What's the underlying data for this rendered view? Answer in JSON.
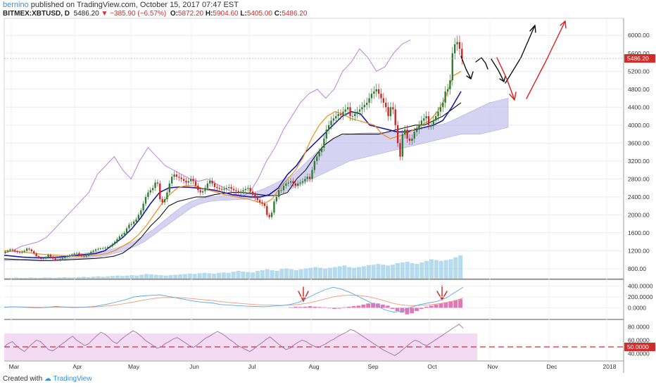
{
  "header": {
    "author": "bernino",
    "published": "published on TradingView.com, October 15, 2017 07:47 EST",
    "symbol": "BITMEX:XBTUSD, D",
    "last": "5486.20",
    "change": "−385.90 (−6.57%)",
    "o_label": "O:",
    "o": "5872.20",
    "h_label": "H:",
    "h": "5904.60",
    "l_label": "L:",
    "l": "5405.00",
    "c_label": "C:",
    "c": "5486.20"
  },
  "footer": {
    "created_with": "Created with",
    "brand": "TradingView"
  },
  "colors": {
    "up": "#2e7d32",
    "down": "#c62828",
    "ema_fast": "#f28c1a",
    "kijun": "#1a1aa8",
    "baseline": "#111111",
    "chikou": "#b873e0",
    "cloud_bull": "#c8c4ee",
    "cloud_bear": "#f6cfd8",
    "volume": "#9ccfe8",
    "rsi_band": "#f3dcf3",
    "rsi_line": "#9c6fa3",
    "macd_hist": "#e277b8",
    "macd_line": "#5aa7e8",
    "signal_line": "#f29a7a",
    "forecast_black": "#111111",
    "forecast_red": "#e11d1d",
    "price_tag": "#d42b2b"
  },
  "chart_data": [
    {
      "type": "candlestick",
      "title": "",
      "price_axis": {
        "ticks": [
          "6000.00",
          "5600.00",
          "5200.00",
          "4800.00",
          "4400.00",
          "4000.00",
          "3600.00",
          "3200.00",
          "2800.00",
          "2400.00",
          "2000.00",
          "1600.00",
          "1200.00",
          "800.00"
        ],
        "ylim": [
          580,
          6380
        ]
      },
      "time_axis": {
        "labels": [
          "Mar",
          "Apr",
          "May",
          "Jun",
          "Jul",
          "Aug",
          "Sep",
          "Oct",
          "Nov",
          "Dec",
          "2018"
        ]
      },
      "last_price_label": "5486.20",
      "closes": [
        1180,
        1205,
        1230,
        1215,
        1190,
        1170,
        1160,
        1180,
        1200,
        1250,
        1230,
        1190,
        1140,
        1080,
        1045,
        1020,
        1030,
        1060,
        1110,
        1070,
        1030,
        1000,
        990,
        1015,
        1040,
        1065,
        1080,
        1100,
        1120,
        1140,
        1150,
        1110,
        1090,
        1075,
        1095,
        1130,
        1180,
        1200,
        1230,
        1245,
        1250,
        1260,
        1270,
        1285,
        1300,
        1350,
        1400,
        1460,
        1520,
        1560,
        1600,
        1700,
        1780,
        1800,
        1850,
        1900,
        2000,
        2100,
        2250,
        2400,
        2500,
        2550,
        2600,
        2720,
        2700,
        2350,
        2280,
        2350,
        2500,
        2700,
        2850,
        2900,
        2850,
        2830,
        2800,
        2760,
        2720,
        2750,
        2800,
        2750,
        2650,
        2550,
        2500,
        2530,
        2600,
        2700,
        2760,
        2700,
        2620,
        2600,
        2580,
        2560,
        2580,
        2600,
        2620,
        2580,
        2550,
        2530,
        2500,
        2520,
        2550,
        2580,
        2600,
        2520,
        2450,
        2380,
        2330,
        2280,
        2250,
        2200,
        2000,
        1950,
        2050,
        2300,
        2400,
        2550,
        2550,
        2650,
        2700,
        2720,
        2750,
        2700,
        2650,
        2700,
        2720,
        2750,
        2800,
        2850,
        2800,
        3000,
        3200,
        3300,
        3400,
        3500,
        3700,
        3900,
        4000,
        4100,
        4150,
        4200,
        4250,
        4220,
        4300,
        4350,
        4400,
        4200,
        4200,
        4250,
        4300,
        4350,
        4400,
        4450,
        4500,
        4600,
        4700,
        4750,
        4800,
        4700,
        4600,
        4500,
        4400,
        4200,
        4400,
        4350,
        4000,
        3600,
        3300,
        3800,
        3900,
        3700,
        3650,
        3700,
        3850,
        3900,
        4000,
        4100,
        4150,
        4200,
        4000,
        4000,
        4100,
        4200,
        4300,
        4400,
        4500,
        4750,
        4800,
        5000,
        5600,
        5800,
        5850,
        5700,
        5486
      ],
      "ema": [
        1200,
        1190,
        1180,
        1160,
        1140,
        1120,
        1110,
        1100,
        1090,
        1080,
        1080,
        1090,
        1110,
        1140,
        1200,
        1300,
        1400,
        1550,
        1750,
        2000,
        2250,
        2450,
        2600,
        2650,
        2650,
        2600,
        2550,
        2500,
        2450,
        2420,
        2380,
        2350,
        2300,
        2250,
        2350,
        2600,
        2800,
        3000,
        3300,
        3700,
        4000,
        4200,
        4300,
        4250,
        4150,
        4100,
        4050,
        4000,
        3800,
        3700,
        3750,
        3800,
        3900,
        4000,
        4100,
        4300,
        4600,
        5100,
        5200
      ],
      "kijun": [
        1100,
        1080,
        1060,
        1050,
        1050,
        1050,
        1060,
        1080,
        1100,
        1120,
        1140,
        1200,
        1350,
        1500,
        1700,
        1950,
        2250,
        2500,
        2600,
        2620,
        2620,
        2600,
        2580,
        2550,
        2500,
        2450,
        2420,
        2400,
        2400,
        2450,
        2600,
        2900,
        3100,
        3400,
        3600,
        3800,
        4000,
        4200,
        4300,
        4250,
        4000,
        3950,
        3900,
        3850,
        3850,
        3900,
        3950,
        4000,
        4100,
        4400,
        4750
      ],
      "baseline": [
        1020,
        1010,
        1000,
        990,
        980,
        980,
        990,
        1000,
        1010,
        1020,
        1030,
        1050,
        1080,
        1150,
        1300,
        1500,
        1750,
        1950,
        2200,
        2300,
        2350,
        2400,
        2400,
        2450,
        2480,
        2500,
        2500,
        2480,
        2450,
        2430,
        2430,
        2500,
        2800,
        3000,
        3300,
        3550,
        3700,
        3800,
        3800,
        3800,
        3800,
        3800,
        3850,
        3900,
        3950,
        4000,
        4000,
        4100,
        4200,
        4350,
        4500
      ],
      "chikou": [
        1150,
        1200,
        1300,
        1350,
        1400,
        1500,
        1700,
        1900,
        2100,
        2300,
        2500,
        2900,
        3100,
        3300,
        3000,
        2800,
        3200,
        3500,
        3300,
        3100,
        3000,
        2900,
        2800,
        2750,
        2800,
        2700,
        2600,
        2500,
        2400,
        2500,
        2800,
        3200,
        3500,
        3900,
        4200,
        4500,
        4700,
        4800,
        4600,
        4800,
        5200,
        5400,
        5700,
        5500,
        5200,
        5300,
        5600,
        5800,
        5900
      ],
      "cloud_upper": [
        1000,
        1000,
        1010,
        1020,
        1040,
        1060,
        1080,
        1100,
        1130,
        1160,
        1180,
        1210,
        1260,
        1330,
        1420,
        1540,
        1680,
        1850,
        2020,
        2180,
        2300,
        2370,
        2400,
        2420,
        2440,
        2460,
        2480,
        2520,
        2600,
        2700,
        2800,
        2900,
        3100,
        3300,
        3500,
        3650,
        3750,
        3800,
        3820,
        3830,
        3830,
        3840,
        3850,
        3880,
        3900,
        3940,
        3980,
        4020,
        4100,
        4200,
        4300,
        4400,
        4500,
        4550,
        4600
      ],
      "cloud_lower": [
        980,
        985,
        990,
        995,
        1000,
        1005,
        1010,
        1020,
        1030,
        1040,
        1060,
        1100,
        1150,
        1200,
        1300,
        1400,
        1550,
        1700,
        1850,
        2000,
        2150,
        2250,
        2300,
        2320,
        2330,
        2340,
        2350,
        2380,
        2400,
        2450,
        2500,
        2600,
        2700,
        2800,
        2900,
        3000,
        3100,
        3200,
        3250,
        3300,
        3350,
        3400,
        3450,
        3500,
        3550,
        3600,
        3650,
        3700,
        3750,
        3800,
        3800,
        3800,
        3850,
        3900,
        3950
      ],
      "volume": [
        2,
        2,
        3,
        2,
        2,
        3,
        2,
        2,
        3,
        3,
        2,
        3,
        4,
        3,
        3,
        4,
        5,
        4,
        5,
        6,
        5,
        6,
        7,
        8,
        7,
        8,
        9,
        8,
        10,
        12,
        11,
        10,
        9,
        8,
        9,
        10,
        11,
        12,
        13,
        12,
        14,
        15,
        14,
        13,
        15,
        16,
        15,
        18,
        20,
        18,
        17,
        16,
        20,
        22,
        24,
        22,
        20,
        25,
        26,
        24,
        22,
        24,
        26,
        28,
        30,
        28,
        26,
        28,
        30,
        32,
        34,
        30,
        28,
        30,
        32,
        35,
        36,
        38,
        36,
        34,
        36,
        40,
        42,
        44,
        40,
        38,
        42,
        46,
        50,
        48,
        46,
        48,
        50,
        55,
        60
      ]
    },
    {
      "type": "line",
      "title": "",
      "axis_ticks": [
        "400.0000",
        "200.0000",
        "0.0000"
      ],
      "ylim": [
        -150,
        460
      ],
      "macd": [
        10,
        20,
        15,
        5,
        0,
        10,
        25,
        15,
        5,
        10,
        20,
        40,
        70,
        110,
        150,
        200,
        220,
        230,
        240,
        210,
        180,
        150,
        120,
        100,
        90,
        60,
        50,
        40,
        30,
        25,
        20,
        30,
        40,
        60,
        100,
        180,
        260,
        330,
        380,
        340,
        280,
        200,
        120,
        40,
        -40,
        -80,
        -60,
        10,
        60,
        90,
        120,
        180,
        280,
        380
      ],
      "signal": [
        15,
        17,
        16,
        12,
        8,
        9,
        14,
        15,
        12,
        11,
        14,
        22,
        35,
        55,
        80,
        110,
        140,
        165,
        185,
        190,
        188,
        180,
        165,
        150,
        135,
        115,
        98,
        85,
        72,
        60,
        52,
        48,
        46,
        50,
        62,
        85,
        120,
        160,
        200,
        225,
        235,
        228,
        205,
        170,
        125,
        80,
        50,
        40,
        45,
        55,
        70,
        95,
        130,
        180
      ],
      "histogram": [
        10,
        20,
        15,
        20,
        30,
        20,
        15,
        10,
        -10,
        -20,
        -15,
        10,
        20,
        30,
        40,
        60,
        80,
        90,
        80,
        60,
        40,
        -20,
        -60,
        -90,
        -120,
        -100,
        -60,
        -20,
        20,
        40,
        60,
        80,
        100,
        120,
        140,
        160
      ]
    },
    {
      "type": "line",
      "title": "",
      "axis_ticks": [
        "80.0000",
        "60.0000",
        "40.0000"
      ],
      "ylim": [
        30,
        90
      ],
      "guide_label": "50.0000",
      "band": [
        30,
        70
      ],
      "rsi": [
        50,
        55,
        58,
        52,
        47,
        43,
        49,
        55,
        60,
        58,
        52,
        46,
        44,
        48,
        53,
        57,
        62,
        66,
        60,
        56,
        52,
        55,
        61,
        67,
        72,
        69,
        64,
        58,
        55,
        61,
        66,
        70,
        74,
        71,
        66,
        60,
        56,
        52,
        48,
        50,
        55,
        58,
        62,
        64,
        60,
        56,
        52,
        49,
        53,
        58,
        63,
        66,
        70,
        73,
        70,
        66,
        61,
        57,
        52,
        49,
        46,
        43,
        47,
        52,
        56,
        61,
        65,
        60,
        55,
        50,
        46,
        48,
        53,
        57,
        60,
        58,
        54,
        51,
        49,
        52,
        55,
        59,
        62,
        66,
        69,
        72,
        76,
        74,
        70,
        66,
        62,
        58,
        54,
        50,
        46,
        43,
        40,
        37,
        41,
        46,
        51,
        56,
        60,
        58,
        54,
        52,
        56,
        60,
        64,
        68,
        72,
        76,
        80,
        84,
        78
      ]
    }
  ]
}
